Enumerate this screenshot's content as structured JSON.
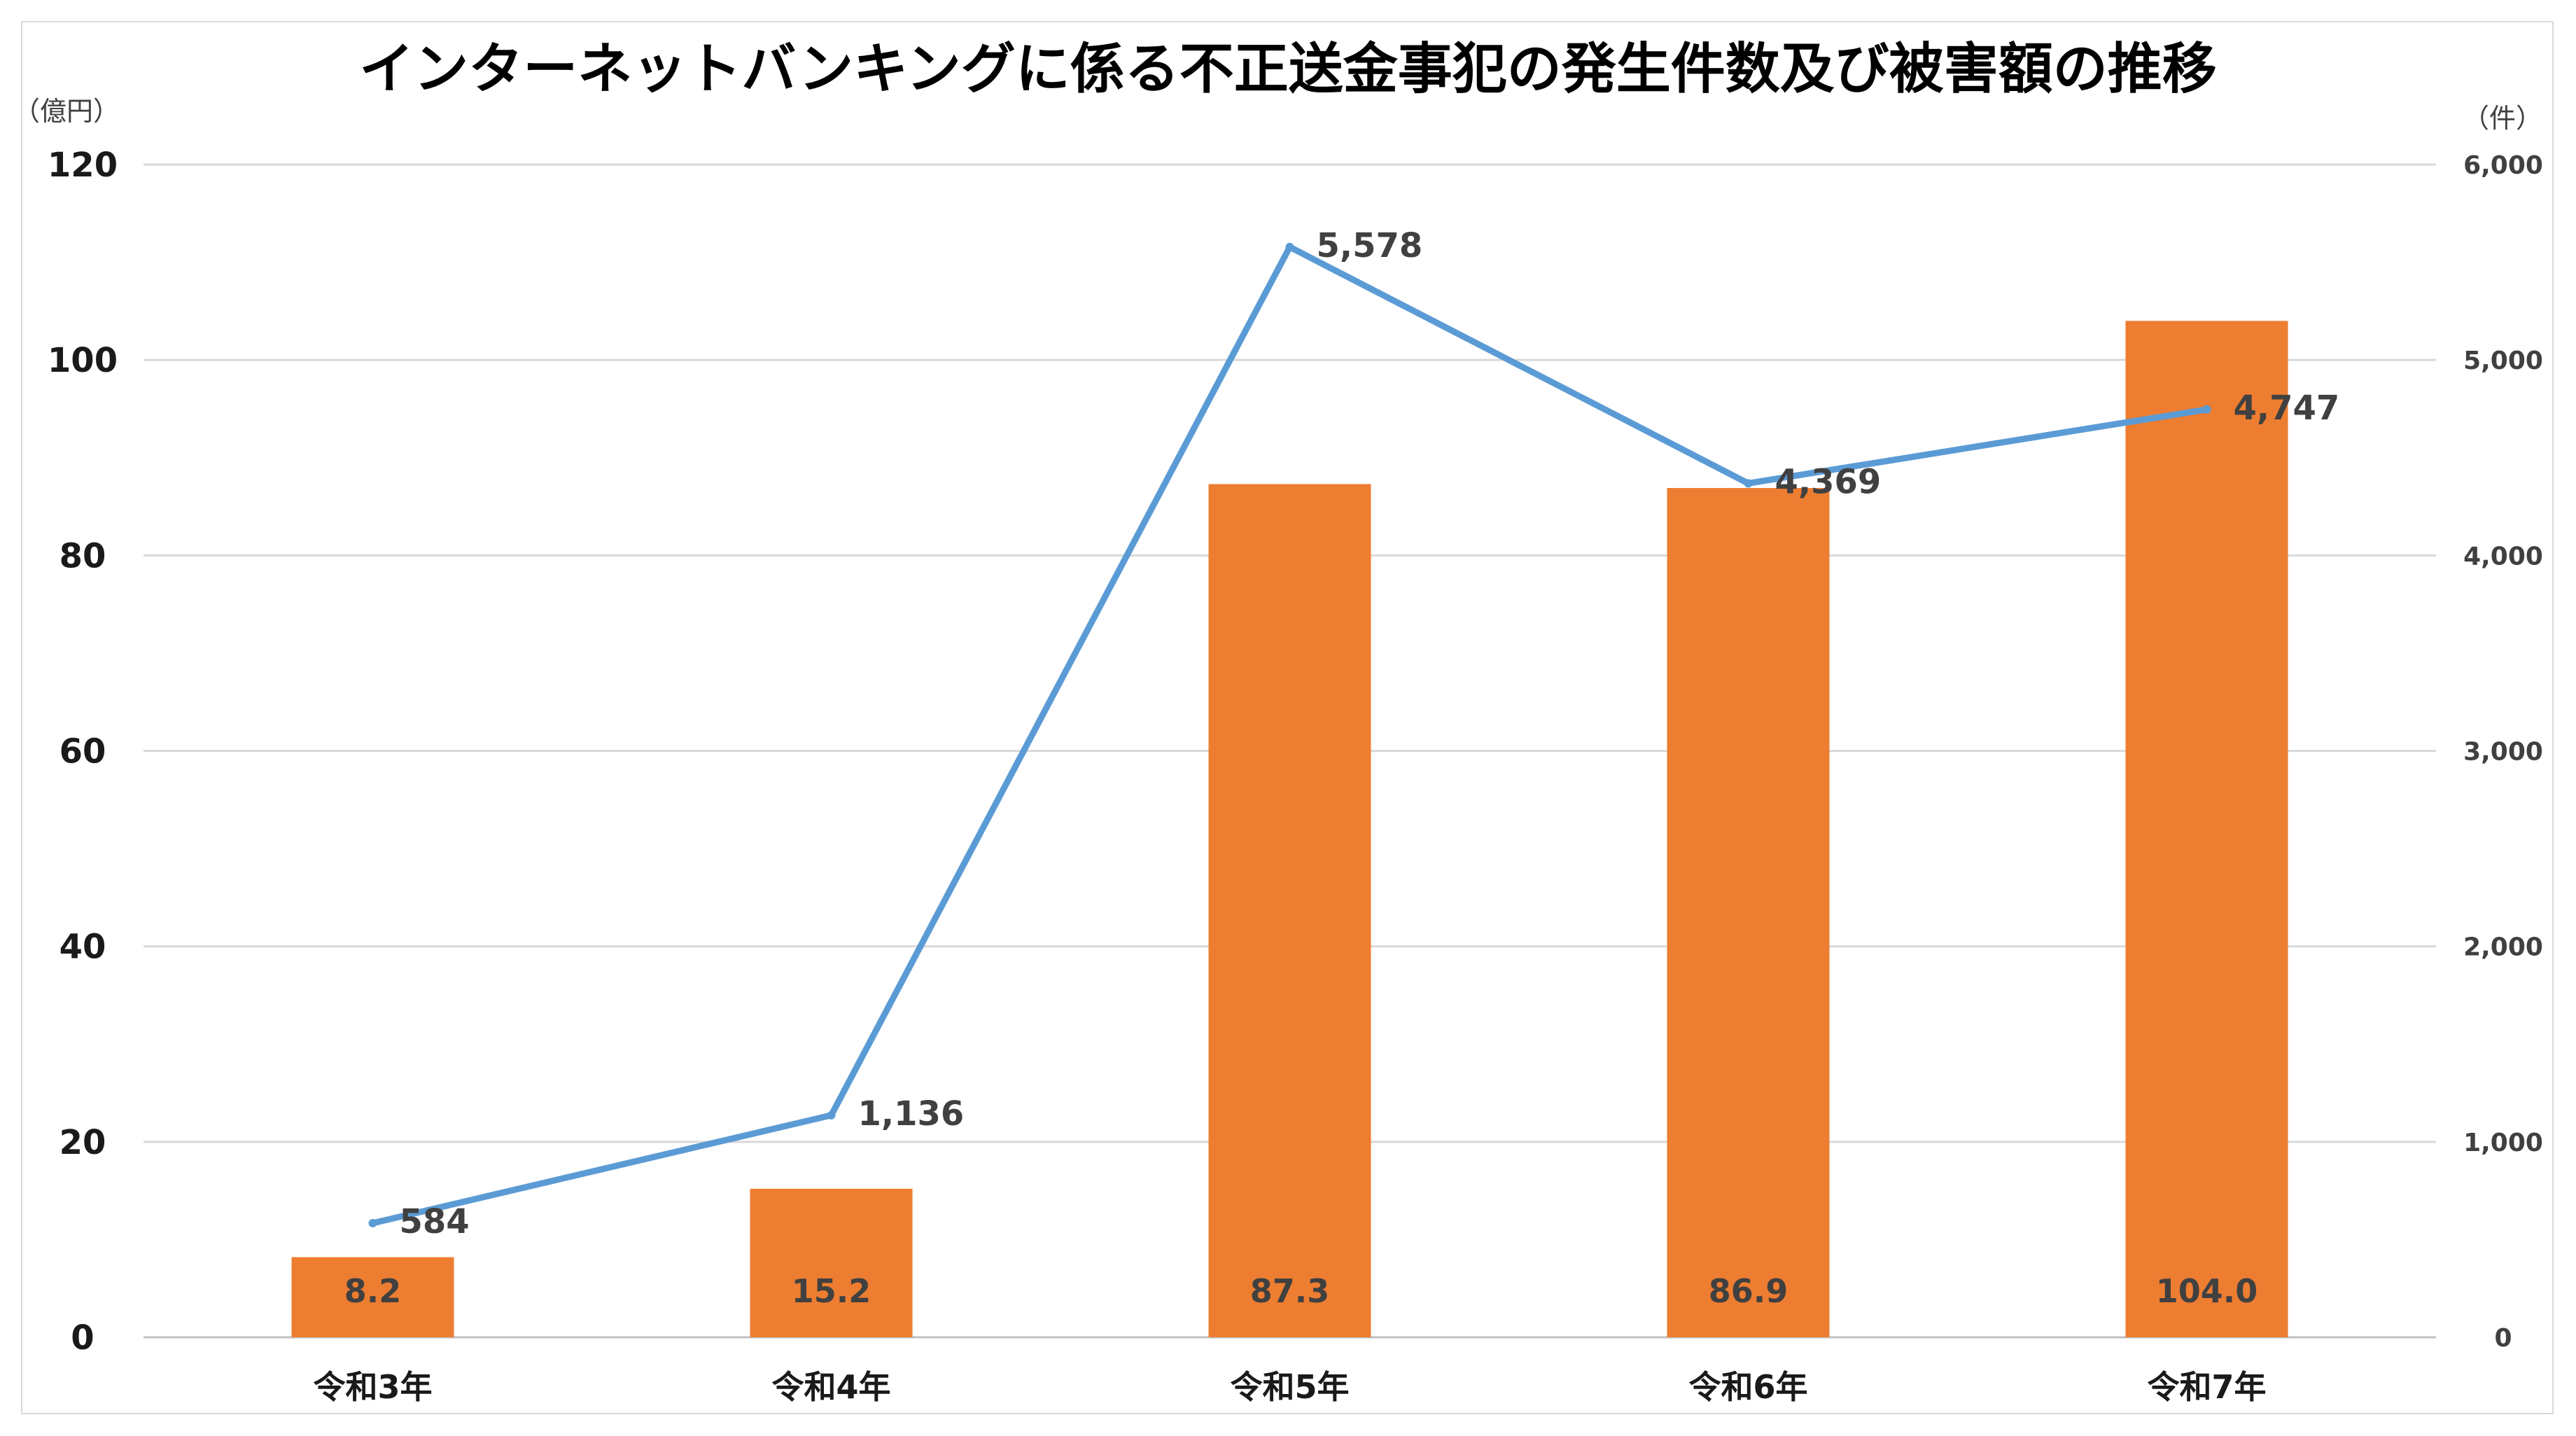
{
  "chart_data": {
    "type": "bar",
    "title": "インターネットバンキングに係る不正送金事犯の発生件数及び被害額の推移",
    "categories": [
      "令和3年",
      "令和4年",
      "令和5年",
      "令和6年",
      "令和7年"
    ],
    "y_left": {
      "unit": "（億円）",
      "range": [
        0,
        120
      ],
      "ticks": [
        "0",
        "20",
        "40",
        "60",
        "80",
        "100",
        "120"
      ]
    },
    "y_right": {
      "unit": "（件）",
      "range": [
        0,
        6000
      ],
      "ticks": [
        "0",
        "1,000",
        "2,000",
        "3,000",
        "4,000",
        "5,000",
        "6,000"
      ]
    },
    "series": [
      {
        "type": "bar",
        "axis": "left",
        "color": "#ed7d31",
        "values": [
          8.2,
          15.2,
          87.3,
          86.9,
          104.0
        ],
        "labels": [
          "8.2",
          "15.2",
          "87.3",
          "86.9",
          "104.0"
        ]
      },
      {
        "type": "line",
        "axis": "right",
        "color": "#5b9bd5",
        "values": [
          584,
          1136,
          5578,
          4369,
          4747
        ],
        "labels": [
          "584",
          "1,136",
          "5,578",
          "4,369",
          "4,747"
        ]
      }
    ],
    "grid": true,
    "legend": "none"
  }
}
